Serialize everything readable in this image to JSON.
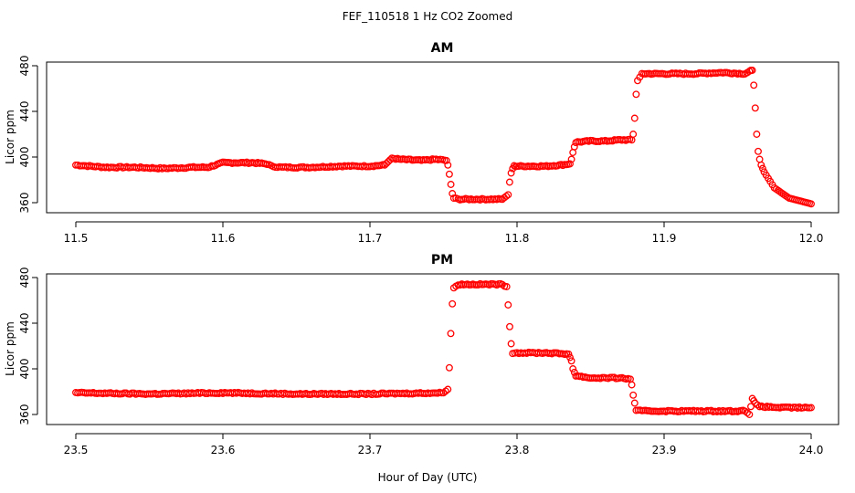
{
  "figure": {
    "title": "FEF_110518  1 Hz CO2 Zoomed",
    "xlabel": "Hour of Day (UTC)"
  },
  "chart_data": [
    {
      "type": "scatter",
      "title": "AM",
      "xlabel": "Hour of Day (UTC)",
      "ylabel": "Licor ppm",
      "xlim": [
        11.5,
        12.0
      ],
      "ylim": [
        355,
        482
      ],
      "xticks": [
        "11.5",
        "11.6",
        "11.7",
        "11.8",
        "11.9",
        "12.0"
      ],
      "yticks": [
        "360",
        "400",
        "440",
        "480"
      ],
      "marker_color": "#ff0000",
      "series": [
        {
          "x": [
            11.5,
            11.52,
            11.54,
            11.56,
            11.58,
            11.59,
            11.595,
            11.6,
            11.61,
            11.62,
            11.63,
            11.633,
            11.64,
            11.66,
            11.68,
            11.7,
            11.71,
            11.715,
            11.72,
            11.735,
            11.745,
            11.752,
            11.753,
            11.754,
            11.755,
            11.756,
            11.757,
            11.76,
            11.77,
            11.78,
            11.79,
            11.794,
            11.795,
            11.796,
            11.797,
            11.798,
            11.8,
            11.81,
            11.82,
            11.83,
            11.836,
            11.837,
            11.838,
            11.839,
            11.84,
            11.85,
            11.86,
            11.87,
            11.878,
            11.879,
            11.88,
            11.881,
            11.882,
            11.885,
            11.9,
            11.92,
            11.94,
            11.955,
            11.958,
            11.96,
            11.961,
            11.962,
            11.963,
            11.964,
            11.965,
            11.966,
            11.968,
            11.975,
            11.985,
            12.0
          ],
          "y": [
            393,
            391,
            391,
            390,
            391,
            391,
            393,
            395,
            395,
            395,
            394,
            392,
            391,
            391,
            392,
            392,
            393,
            399,
            398,
            397,
            398,
            397,
            393,
            385,
            376,
            368,
            364,
            363,
            363,
            363,
            363,
            367,
            378,
            386,
            390,
            392,
            392,
            392,
            392,
            393,
            394,
            398,
            404,
            409,
            413,
            414,
            414,
            415,
            415,
            420,
            434,
            455,
            467,
            473,
            473,
            473,
            474,
            473,
            475,
            476,
            463,
            443,
            420,
            405,
            398,
            393,
            387,
            373,
            364,
            359
          ]
        }
      ]
    },
    {
      "type": "scatter",
      "title": "PM",
      "xlabel": "Hour of Day (UTC)",
      "ylabel": "Licor ppm",
      "xlim": [
        23.5,
        24.0
      ],
      "ylim": [
        355,
        482
      ],
      "xticks": [
        "23.5",
        "23.6",
        "23.7",
        "23.8",
        "23.9",
        "24.0"
      ],
      "yticks": [
        "360",
        "400",
        "440",
        "480"
      ],
      "marker_color": "#ff0000",
      "series": [
        {
          "x": [
            23.5,
            23.55,
            23.6,
            23.65,
            23.7,
            23.75,
            23.753,
            23.754,
            23.755,
            23.756,
            23.757,
            23.76,
            23.77,
            23.78,
            23.79,
            23.793,
            23.794,
            23.795,
            23.796,
            23.797,
            23.8,
            23.82,
            23.835,
            23.837,
            23.838,
            23.84,
            23.85,
            23.87,
            23.877,
            23.878,
            23.879,
            23.88,
            23.881,
            23.885,
            23.9,
            23.92,
            23.94,
            23.955,
            23.958,
            23.96,
            23.962,
            23.965,
            23.98,
            24.0
          ],
          "y": [
            379,
            378,
            379,
            378,
            378,
            379,
            382,
            401,
            431,
            457,
            471,
            474,
            474,
            474,
            474,
            472,
            456,
            437,
            422,
            414,
            414,
            414,
            413,
            407,
            400,
            394,
            392,
            392,
            391,
            386,
            377,
            370,
            364,
            363,
            363,
            363,
            363,
            363,
            360,
            374,
            370,
            367,
            366,
            366
          ]
        }
      ]
    }
  ]
}
